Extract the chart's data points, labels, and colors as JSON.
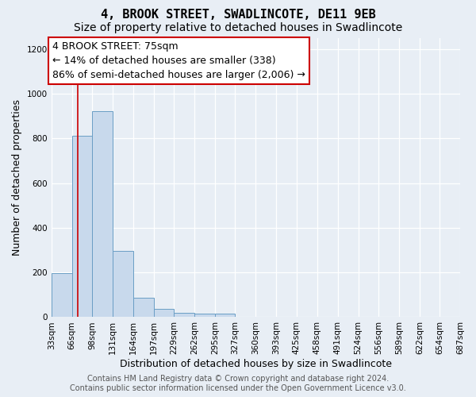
{
  "title": "4, BROOK STREET, SWADLINCOTE, DE11 9EB",
  "subtitle": "Size of property relative to detached houses in Swadlincote",
  "xlabel": "Distribution of detached houses by size in Swadlincote",
  "ylabel": "Number of detached properties",
  "footer_line1": "Contains HM Land Registry data © Crown copyright and database right 2024.",
  "footer_line2": "Contains public sector information licensed under the Open Government Licence v3.0.",
  "bin_edges": [
    33,
    66,
    98,
    131,
    164,
    197,
    229,
    262,
    295,
    327,
    360,
    393,
    425,
    458,
    491,
    524,
    556,
    589,
    622,
    654,
    687
  ],
  "bar_heights": [
    196,
    810,
    921,
    295,
    88,
    38,
    18,
    15,
    15,
    0,
    0,
    0,
    0,
    0,
    0,
    0,
    0,
    0,
    0,
    0
  ],
  "bar_color": "#c8d9ec",
  "bar_edge_color": "#6a9ec5",
  "vline_x": 75,
  "vline_color": "#cc0000",
  "annotation_title": "4 BROOK STREET: 75sqm",
  "annotation_line1": "← 14% of detached houses are smaller (338)",
  "annotation_line2": "86% of semi-detached houses are larger (2,006) →",
  "annotation_box_facecolor": "#ffffff",
  "annotation_box_edgecolor": "#cc0000",
  "ylim": [
    0,
    1250
  ],
  "yticks": [
    0,
    200,
    400,
    600,
    800,
    1000,
    1200
  ],
  "tick_labels": [
    "33sqm",
    "66sqm",
    "98sqm",
    "131sqm",
    "164sqm",
    "197sqm",
    "229sqm",
    "262sqm",
    "295sqm",
    "327sqm",
    "360sqm",
    "393sqm",
    "425sqm",
    "458sqm",
    "491sqm",
    "524sqm",
    "556sqm",
    "589sqm",
    "622sqm",
    "654sqm",
    "687sqm"
  ],
  "background_color": "#e8eef5",
  "grid_color": "#ffffff",
  "title_fontsize": 11,
  "subtitle_fontsize": 10,
  "axis_label_fontsize": 9,
  "tick_fontsize": 7.5,
  "annotation_fontsize": 9,
  "footer_fontsize": 7,
  "footer_color": "#555555"
}
